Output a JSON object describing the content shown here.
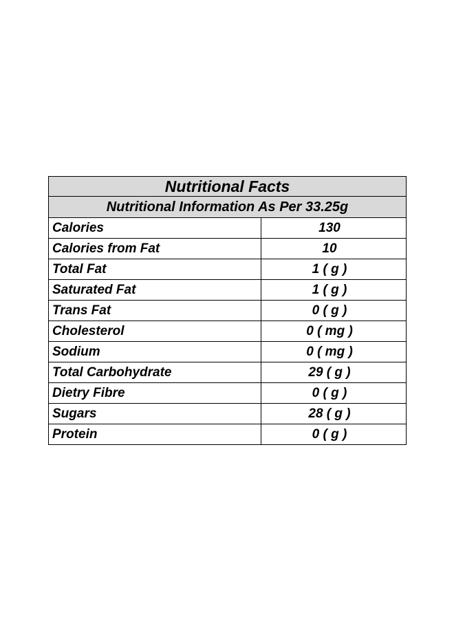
{
  "title": "Nutritional Facts",
  "subtitle": "Nutritional Information As Per  33.25g",
  "rows": [
    {
      "name": "Calories",
      "value": "130"
    },
    {
      "name": "Calories from Fat",
      "value": "10"
    },
    {
      "name": "Total Fat",
      "value": "1 ( g )"
    },
    {
      "name": "Saturated Fat",
      "value": "1 ( g )"
    },
    {
      "name": "Trans Fat",
      "value": "0 ( g )"
    },
    {
      "name": "Cholesterol",
      "value": "0 ( mg )"
    },
    {
      "name": "Sodium",
      "value": "0 ( mg )"
    },
    {
      "name": "Total Carbohydrate",
      "value": "29 ( g )"
    },
    {
      "name": "Dietry Fibre",
      "value": "0 ( g )"
    },
    {
      "name": "Sugars",
      "value": "28 ( g )"
    },
    {
      "name": "Protein",
      "value": "0 ( g )"
    }
  ]
}
